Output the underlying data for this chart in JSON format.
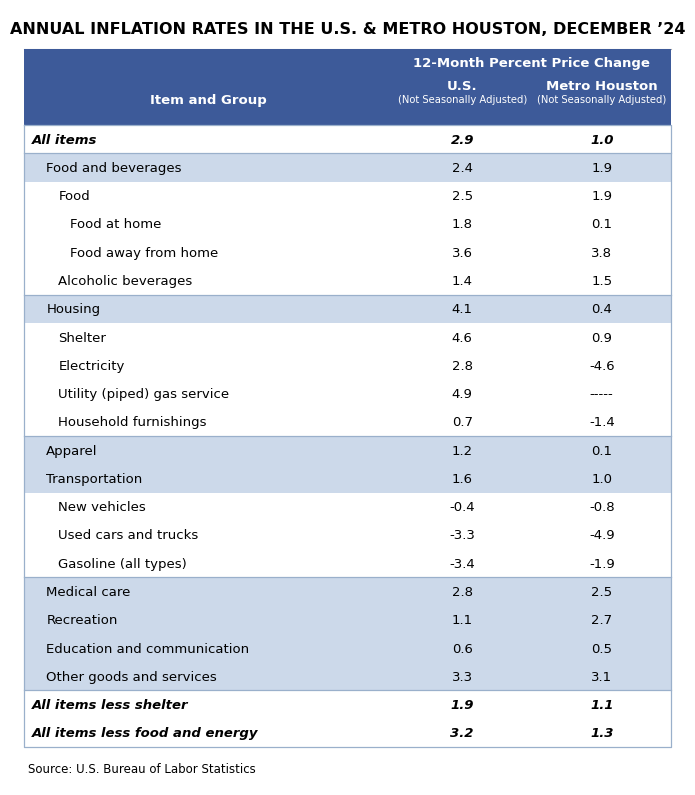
{
  "title": "ANNUAL INFLATION RATES IN THE U.S. & METRO HOUSTON, DECEMBER ’24",
  "header_bg": "#3d5a99",
  "header_text_color": "#ffffff",
  "subheader": "12-Month Percent Price Change",
  "col1_header": "Item and Group",
  "col2_header": "U.S.",
  "col2_subheader": "(Not Seasonally Adjusted)",
  "col3_header": "Metro Houston",
  "col3_subheader": "(Not Seasonally Adjusted)",
  "source": "Source: U.S. Bureau of Labor Statistics",
  "rows": [
    {
      "label": "All items",
      "us": "2.9",
      "hou": "1.0",
      "bold": true,
      "italic": true,
      "indent": 0,
      "bg": "#ffffff",
      "top_border": false
    },
    {
      "label": "Food and beverages",
      "us": "2.4",
      "hou": "1.9",
      "bold": false,
      "italic": false,
      "indent": 1,
      "bg": "#ccd9ea",
      "top_border": true
    },
    {
      "label": "Food",
      "us": "2.5",
      "hou": "1.9",
      "bold": false,
      "italic": false,
      "indent": 2,
      "bg": "#ffffff",
      "top_border": false
    },
    {
      "label": "Food at home",
      "us": "1.8",
      "hou": "0.1",
      "bold": false,
      "italic": false,
      "indent": 3,
      "bg": "#ffffff",
      "top_border": false
    },
    {
      "label": "Food away from home",
      "us": "3.6",
      "hou": "3.8",
      "bold": false,
      "italic": false,
      "indent": 3,
      "bg": "#ffffff",
      "top_border": false
    },
    {
      "label": "Alcoholic beverages",
      "us": "1.4",
      "hou": "1.5",
      "bold": false,
      "italic": false,
      "indent": 2,
      "bg": "#ffffff",
      "top_border": false
    },
    {
      "label": "Housing",
      "us": "4.1",
      "hou": "0.4",
      "bold": false,
      "italic": false,
      "indent": 1,
      "bg": "#ccd9ea",
      "top_border": true
    },
    {
      "label": "Shelter",
      "us": "4.6",
      "hou": "0.9",
      "bold": false,
      "italic": false,
      "indent": 2,
      "bg": "#ffffff",
      "top_border": false
    },
    {
      "label": "Electricity",
      "us": "2.8",
      "hou": "-4.6",
      "bold": false,
      "italic": false,
      "indent": 2,
      "bg": "#ffffff",
      "top_border": false
    },
    {
      "label": "Utility (piped) gas service",
      "us": "4.9",
      "hou": "-----",
      "bold": false,
      "italic": false,
      "indent": 2,
      "bg": "#ffffff",
      "top_border": false
    },
    {
      "label": "Household furnishings",
      "us": "0.7",
      "hou": "-1.4",
      "bold": false,
      "italic": false,
      "indent": 2,
      "bg": "#ffffff",
      "top_border": false
    },
    {
      "label": "Apparel",
      "us": "1.2",
      "hou": "0.1",
      "bold": false,
      "italic": false,
      "indent": 1,
      "bg": "#ccd9ea",
      "top_border": true
    },
    {
      "label": "Transportation",
      "us": "1.6",
      "hou": "1.0",
      "bold": false,
      "italic": false,
      "indent": 1,
      "bg": "#ccd9ea",
      "top_border": false
    },
    {
      "label": "New vehicles",
      "us": "-0.4",
      "hou": "-0.8",
      "bold": false,
      "italic": false,
      "indent": 2,
      "bg": "#ffffff",
      "top_border": false
    },
    {
      "label": "Used cars and trucks",
      "us": "-3.3",
      "hou": "-4.9",
      "bold": false,
      "italic": false,
      "indent": 2,
      "bg": "#ffffff",
      "top_border": false
    },
    {
      "label": "Gasoline (all types)",
      "us": "-3.4",
      "hou": "-1.9",
      "bold": false,
      "italic": false,
      "indent": 2,
      "bg": "#ffffff",
      "top_border": false
    },
    {
      "label": "Medical care",
      "us": "2.8",
      "hou": "2.5",
      "bold": false,
      "italic": false,
      "indent": 1,
      "bg": "#ccd9ea",
      "top_border": true
    },
    {
      "label": "Recreation",
      "us": "1.1",
      "hou": "2.7",
      "bold": false,
      "italic": false,
      "indent": 1,
      "bg": "#ccd9ea",
      "top_border": false
    },
    {
      "label": "Education and communication",
      "us": "0.6",
      "hou": "0.5",
      "bold": false,
      "italic": false,
      "indent": 1,
      "bg": "#ccd9ea",
      "top_border": false
    },
    {
      "label": "Other goods and services",
      "us": "3.3",
      "hou": "3.1",
      "bold": false,
      "italic": false,
      "indent": 1,
      "bg": "#ccd9ea",
      "top_border": false
    },
    {
      "label": "All items less shelter",
      "us": "1.9",
      "hou": "1.1",
      "bold": true,
      "italic": true,
      "indent": 0,
      "bg": "#ffffff",
      "top_border": true
    },
    {
      "label": "All items less food and energy",
      "us": "3.2",
      "hou": "1.3",
      "bold": true,
      "italic": true,
      "indent": 0,
      "bg": "#ffffff",
      "top_border": false
    }
  ],
  "fig_bg": "#ffffff",
  "title_fontsize": 11.5,
  "header_fontsize": 9.5,
  "cell_fontsize": 9.5,
  "source_fontsize": 8.5
}
